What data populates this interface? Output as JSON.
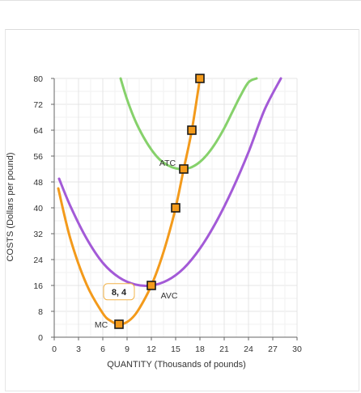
{
  "chart_data": {
    "type": "line",
    "xlabel": "QUANTITY (Thousands of pounds)",
    "ylabel": "COSTS (Dollars per pound)",
    "xlim": [
      0,
      30
    ],
    "ylim": [
      0,
      80
    ],
    "xticks": [
      0,
      3,
      6,
      9,
      12,
      15,
      18,
      21,
      24,
      27,
      30
    ],
    "yticks": [
      0,
      8,
      16,
      24,
      32,
      40,
      48,
      56,
      64,
      72,
      80
    ],
    "grid": true,
    "series": [
      {
        "name": "ATC",
        "color": "#86d16b",
        "x": [
          8.2,
          9,
          10,
          11,
          12,
          13,
          14,
          15,
          16,
          17,
          18,
          19,
          20,
          21,
          22,
          23,
          24,
          25
        ],
        "y": [
          80,
          73.5,
          67,
          62,
          58,
          55,
          53.2,
          52.2,
          52,
          52.6,
          54.2,
          56.8,
          60.3,
          64.6,
          69.6,
          74.6,
          78.8,
          80
        ]
      },
      {
        "name": "AVC",
        "color": "#a35ad7",
        "x": [
          0.6,
          2,
          4,
          6,
          8,
          10,
          12,
          14,
          16,
          18,
          20,
          22,
          24,
          26,
          28
        ],
        "y": [
          49,
          40.5,
          30.5,
          23,
          18.5,
          16.3,
          16,
          17.6,
          21.3,
          27.4,
          35.6,
          45.6,
          57.2,
          70.4,
          80
        ]
      },
      {
        "name": "MC",
        "color": "#f39a1b",
        "x": [
          0.5,
          2,
          4,
          6,
          7,
          8,
          9,
          10,
          11,
          12,
          13,
          14,
          15,
          16,
          17,
          18
        ],
        "y": [
          46,
          30.4,
          16.3,
          7.4,
          5,
          4,
          4.7,
          7,
          11,
          16,
          22.5,
          30.5,
          40,
          52,
          64,
          80
        ]
      }
    ],
    "points": [
      {
        "x": 8,
        "y": 4
      },
      {
        "x": 12,
        "y": 16
      },
      {
        "x": 15,
        "y": 40
      },
      {
        "x": 16,
        "y": 52
      },
      {
        "x": 17,
        "y": 64
      },
      {
        "x": 18,
        "y": 80
      }
    ],
    "labels": [
      {
        "text": "ATC",
        "x": 14,
        "y": 54
      },
      {
        "text": "AVC",
        "x": 14.2,
        "y": 13
      },
      {
        "text": "MC",
        "x": 5.8,
        "y": 4
      },
      {
        "text": "8, 4",
        "x": 8,
        "y": 14.3
      }
    ]
  }
}
